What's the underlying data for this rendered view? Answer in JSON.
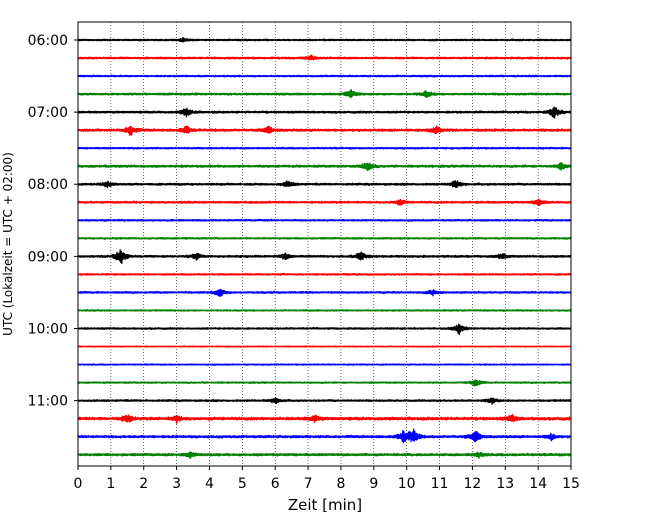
{
  "chart_data": {
    "type": "line",
    "title": "",
    "xlabel": "Zeit  [min]",
    "ylabel": "UTC (Lokalzeit = UTC + 02:00)",
    "xlim": [
      0,
      15
    ],
    "x_ticks": [
      0,
      1,
      2,
      3,
      4,
      5,
      6,
      7,
      8,
      9,
      10,
      11,
      12,
      13,
      14,
      15
    ],
    "y_tick_labels": [
      "06:00",
      "07:00",
      "08:00",
      "09:00",
      "10:00",
      "11:00"
    ],
    "grid": "vertical-dotted",
    "trace_colors": [
      "#000000",
      "#ff0000",
      "#0000ff",
      "#008000"
    ],
    "series": [
      {
        "start": "06:00",
        "color": "#000000",
        "amp": 0.8,
        "events": [
          [
            3.2,
            1.0
          ]
        ]
      },
      {
        "start": "06:15",
        "color": "#ff0000",
        "amp": 0.9,
        "events": [
          [
            7.1,
            1.2
          ]
        ]
      },
      {
        "start": "06:30",
        "color": "#0000ff",
        "amp": 0.8,
        "events": []
      },
      {
        "start": "06:45",
        "color": "#008000",
        "amp": 1.0,
        "events": [
          [
            8.3,
            1.8
          ],
          [
            10.6,
            1.6
          ]
        ]
      },
      {
        "start": "07:00",
        "color": "#000000",
        "amp": 1.0,
        "events": [
          [
            3.3,
            2.0
          ],
          [
            14.5,
            2.8
          ]
        ]
      },
      {
        "start": "07:15",
        "color": "#ff0000",
        "amp": 1.2,
        "events": [
          [
            1.6,
            2.5
          ],
          [
            3.3,
            1.8
          ],
          [
            5.8,
            1.6
          ],
          [
            10.9,
            1.6
          ]
        ]
      },
      {
        "start": "07:30",
        "color": "#0000ff",
        "amp": 0.8,
        "events": []
      },
      {
        "start": "07:45",
        "color": "#008000",
        "amp": 1.1,
        "events": [
          [
            8.8,
            2.2
          ],
          [
            14.7,
            1.4
          ]
        ]
      },
      {
        "start": "08:00",
        "color": "#000000",
        "amp": 1.0,
        "events": [
          [
            0.9,
            1.5
          ],
          [
            6.4,
            1.5
          ],
          [
            11.5,
            2.0
          ]
        ]
      },
      {
        "start": "08:15",
        "color": "#ff0000",
        "amp": 1.0,
        "events": [
          [
            9.8,
            1.3
          ],
          [
            14.0,
            1.3
          ]
        ]
      },
      {
        "start": "08:30",
        "color": "#0000ff",
        "amp": 0.8,
        "events": []
      },
      {
        "start": "08:45",
        "color": "#008000",
        "amp": 0.8,
        "events": []
      },
      {
        "start": "09:00",
        "color": "#000000",
        "amp": 1.0,
        "events": [
          [
            1.3,
            4.0
          ],
          [
            3.6,
            1.4
          ],
          [
            6.3,
            1.6
          ],
          [
            8.6,
            2.0
          ],
          [
            12.9,
            1.3
          ]
        ]
      },
      {
        "start": "09:15",
        "color": "#ff0000",
        "amp": 0.8,
        "events": []
      },
      {
        "start": "09:30",
        "color": "#0000ff",
        "amp": 0.9,
        "events": [
          [
            4.3,
            2.0
          ],
          [
            10.8,
            1.4
          ]
        ]
      },
      {
        "start": "09:45",
        "color": "#008000",
        "amp": 0.7,
        "events": []
      },
      {
        "start": "10:00",
        "color": "#000000",
        "amp": 0.8,
        "events": [
          [
            11.6,
            2.6
          ]
        ]
      },
      {
        "start": "10:15",
        "color": "#ff0000",
        "amp": 0.5,
        "events": []
      },
      {
        "start": "10:30",
        "color": "#0000ff",
        "amp": 0.6,
        "events": []
      },
      {
        "start": "10:45",
        "color": "#008000",
        "amp": 0.7,
        "events": [
          [
            12.1,
            1.8
          ]
        ]
      },
      {
        "start": "11:00",
        "color": "#000000",
        "amp": 0.9,
        "events": [
          [
            6.0,
            1.3
          ],
          [
            12.6,
            1.2
          ]
        ]
      },
      {
        "start": "11:15",
        "color": "#ff0000",
        "amp": 1.4,
        "events": [
          [
            1.5,
            2.2
          ],
          [
            3.0,
            1.6
          ],
          [
            7.2,
            1.5
          ],
          [
            13.2,
            1.5
          ]
        ]
      },
      {
        "start": "11:30",
        "color": "#0000ff",
        "amp": 1.2,
        "events": [
          [
            9.9,
            2.8
          ],
          [
            10.2,
            3.5
          ],
          [
            12.1,
            2.6
          ],
          [
            14.4,
            1.4
          ]
        ]
      },
      {
        "start": "11:45",
        "color": "#008000",
        "amp": 1.2,
        "events": [
          [
            3.4,
            1.3
          ],
          [
            12.2,
            1.3
          ]
        ]
      }
    ]
  }
}
